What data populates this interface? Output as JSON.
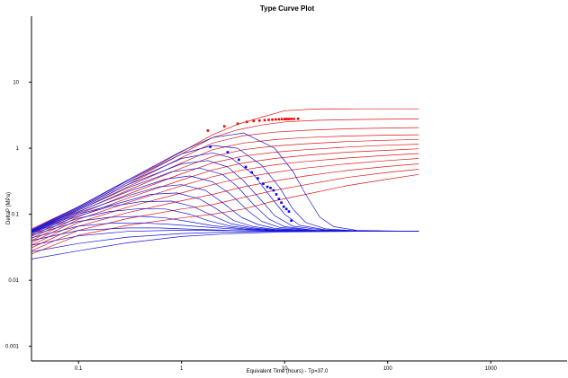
{
  "chart_data": {
    "type": "line",
    "title": "Type Curve Plot",
    "xlabel": "Equivalent Time (hours) - Tp=37.0",
    "ylabel": "DeltaP (MPa)",
    "x_scale": "log",
    "y_scale": "log",
    "xlim": [
      0.035,
      5500
    ],
    "ylim": [
      0.0006,
      100
    ],
    "x_ticks": [
      {
        "value": 0.1,
        "label": "0.1"
      },
      {
        "value": 1,
        "label": "1"
      },
      {
        "value": 10,
        "label": "10"
      },
      {
        "value": 100,
        "label": "100"
      },
      {
        "value": 1000,
        "label": "1000"
      }
    ],
    "y_ticks": [
      {
        "value": 0.001,
        "label": "0.001"
      },
      {
        "value": 0.01,
        "label": "0.01"
      },
      {
        "value": 0.1,
        "label": "0.1"
      },
      {
        "value": 1,
        "label": "1"
      },
      {
        "value": 10,
        "label": "10"
      }
    ],
    "grid": false,
    "legend": "none",
    "colors": {
      "red_family": "#e01515",
      "blue_family": "#1515d8"
    },
    "red_curves": [
      {
        "x": [
          0.035,
          0.1,
          0.3,
          1,
          2,
          3.5,
          6,
          10,
          20,
          50,
          200
        ],
        "y": [
          0.06,
          0.13,
          0.32,
          0.88,
          1.6,
          2.3,
          2.95,
          3.7,
          3.92,
          3.95,
          3.95
        ]
      },
      {
        "x": [
          0.035,
          0.1,
          0.3,
          1,
          2,
          3.5,
          6,
          10,
          20,
          50,
          200
        ],
        "y": [
          0.055,
          0.125,
          0.3,
          0.82,
          1.45,
          1.9,
          2.25,
          2.5,
          2.65,
          2.72,
          2.78
        ]
      },
      {
        "x": [
          0.035,
          0.1,
          0.3,
          1,
          2,
          4,
          8,
          16,
          40,
          100,
          200
        ],
        "y": [
          0.052,
          0.12,
          0.28,
          0.72,
          1.2,
          1.55,
          1.75,
          1.87,
          1.97,
          2.02,
          2.05
        ]
      },
      {
        "x": [
          0.035,
          0.1,
          0.3,
          1,
          2,
          4,
          8,
          16,
          40,
          100,
          200
        ],
        "y": [
          0.049,
          0.115,
          0.26,
          0.6,
          0.95,
          1.2,
          1.35,
          1.45,
          1.53,
          1.58,
          1.6
        ]
      },
      {
        "x": [
          0.035,
          0.1,
          0.3,
          1,
          2,
          4,
          8,
          16,
          40,
          100,
          200
        ],
        "y": [
          0.046,
          0.108,
          0.23,
          0.5,
          0.75,
          0.95,
          1.08,
          1.17,
          1.26,
          1.32,
          1.36
        ]
      },
      {
        "x": [
          0.035,
          0.1,
          0.3,
          1,
          2,
          4,
          8,
          16,
          40,
          100,
          200
        ],
        "y": [
          0.043,
          0.1,
          0.2,
          0.41,
          0.6,
          0.76,
          0.87,
          0.95,
          1.04,
          1.11,
          1.15
        ]
      },
      {
        "x": [
          0.035,
          0.1,
          0.3,
          1,
          2,
          4,
          8,
          16,
          40,
          100,
          200
        ],
        "y": [
          0.04,
          0.092,
          0.175,
          0.33,
          0.47,
          0.6,
          0.7,
          0.78,
          0.87,
          0.93,
          0.98
        ]
      },
      {
        "x": [
          0.035,
          0.1,
          0.3,
          1,
          2,
          4,
          8,
          16,
          40,
          100,
          200
        ],
        "y": [
          0.037,
          0.084,
          0.15,
          0.27,
          0.37,
          0.47,
          0.56,
          0.63,
          0.71,
          0.78,
          0.83
        ]
      },
      {
        "x": [
          0.035,
          0.1,
          0.3,
          1,
          2,
          4,
          8,
          16,
          40,
          100,
          200
        ],
        "y": [
          0.034,
          0.075,
          0.128,
          0.21,
          0.28,
          0.36,
          0.43,
          0.5,
          0.58,
          0.65,
          0.7
        ]
      },
      {
        "x": [
          0.035,
          0.1,
          0.3,
          1,
          2,
          4,
          8,
          16,
          40,
          100,
          200
        ],
        "y": [
          0.031,
          0.066,
          0.106,
          0.16,
          0.2,
          0.26,
          0.32,
          0.38,
          0.46,
          0.53,
          0.58
        ]
      },
      {
        "x": [
          0.035,
          0.1,
          0.3,
          1,
          2,
          4,
          8,
          16,
          40,
          100,
          200
        ],
        "y": [
          0.028,
          0.057,
          0.086,
          0.12,
          0.14,
          0.18,
          0.23,
          0.28,
          0.36,
          0.43,
          0.48
        ]
      },
      {
        "x": [
          0.035,
          0.1,
          0.3,
          1,
          2,
          4,
          8,
          16,
          40,
          100,
          200
        ],
        "y": [
          0.025,
          0.048,
          0.068,
          0.088,
          0.1,
          0.12,
          0.16,
          0.2,
          0.27,
          0.34,
          0.4
        ]
      }
    ],
    "blue_curves": [
      {
        "x": [
          0.035,
          0.1,
          0.3,
          1,
          2,
          4,
          8,
          12,
          16,
          22,
          30,
          50,
          200
        ],
        "y": [
          0.058,
          0.13,
          0.33,
          0.9,
          1.45,
          1.7,
          1.0,
          0.45,
          0.2,
          0.09,
          0.065,
          0.057,
          0.055
        ]
      },
      {
        "x": [
          0.035,
          0.1,
          0.3,
          1,
          2,
          3.5,
          6,
          9,
          12,
          16,
          25,
          50,
          200
        ],
        "y": [
          0.057,
          0.13,
          0.32,
          0.82,
          1.1,
          1.0,
          0.55,
          0.25,
          0.12,
          0.075,
          0.06,
          0.056,
          0.055
        ]
      },
      {
        "x": [
          0.035,
          0.1,
          0.3,
          1,
          2,
          3,
          5,
          7,
          10,
          14,
          25,
          50,
          200
        ],
        "y": [
          0.056,
          0.125,
          0.3,
          0.7,
          0.85,
          0.72,
          0.4,
          0.2,
          0.1,
          0.068,
          0.058,
          0.056,
          0.055
        ]
      },
      {
        "x": [
          0.035,
          0.1,
          0.3,
          1,
          1.8,
          2.8,
          4,
          6,
          8,
          12,
          25,
          50,
          200
        ],
        "y": [
          0.055,
          0.12,
          0.28,
          0.58,
          0.65,
          0.52,
          0.32,
          0.16,
          0.095,
          0.066,
          0.057,
          0.056,
          0.055
        ]
      },
      {
        "x": [
          0.035,
          0.1,
          0.3,
          0.8,
          1.5,
          2.5,
          3.5,
          5,
          7,
          10,
          20,
          50,
          200
        ],
        "y": [
          0.055,
          0.115,
          0.25,
          0.44,
          0.5,
          0.4,
          0.26,
          0.14,
          0.085,
          0.065,
          0.057,
          0.056,
          0.055
        ]
      },
      {
        "x": [
          0.035,
          0.1,
          0.3,
          0.7,
          1.2,
          2,
          3,
          4.5,
          6,
          9,
          20,
          50,
          200
        ],
        "y": [
          0.054,
          0.11,
          0.22,
          0.34,
          0.38,
          0.31,
          0.2,
          0.11,
          0.078,
          0.063,
          0.057,
          0.056,
          0.055
        ]
      },
      {
        "x": [
          0.035,
          0.1,
          0.3,
          0.6,
          1,
          1.7,
          2.5,
          3.8,
          5.5,
          8,
          20,
          50,
          200
        ],
        "y": [
          0.054,
          0.105,
          0.19,
          0.26,
          0.28,
          0.23,
          0.15,
          0.09,
          0.07,
          0.061,
          0.056,
          0.055,
          0.055
        ]
      },
      {
        "x": [
          0.035,
          0.1,
          0.3,
          0.5,
          0.9,
          1.5,
          2.2,
          3.2,
          5,
          8,
          20,
          50,
          200
        ],
        "y": [
          0.053,
          0.1,
          0.16,
          0.2,
          0.21,
          0.17,
          0.12,
          0.08,
          0.065,
          0.059,
          0.056,
          0.055,
          0.055
        ]
      },
      {
        "x": [
          0.035,
          0.1,
          0.2,
          0.4,
          0.8,
          1.3,
          2,
          3,
          5,
          8,
          20,
          50,
          200
        ],
        "y": [
          0.052,
          0.094,
          0.13,
          0.155,
          0.158,
          0.13,
          0.095,
          0.072,
          0.062,
          0.058,
          0.056,
          0.055,
          0.055
        ]
      },
      {
        "x": [
          0.035,
          0.1,
          0.2,
          0.4,
          0.7,
          1.2,
          1.8,
          3,
          5,
          8,
          20,
          50,
          200
        ],
        "y": [
          0.05,
          0.087,
          0.11,
          0.122,
          0.12,
          0.1,
          0.08,
          0.066,
          0.06,
          0.057,
          0.055,
          0.055,
          0.055
        ]
      },
      {
        "x": [
          0.035,
          0.1,
          0.2,
          0.4,
          0.7,
          1.2,
          2,
          4,
          8,
          20,
          50,
          200
        ],
        "y": [
          0.048,
          0.078,
          0.09,
          0.093,
          0.088,
          0.077,
          0.067,
          0.06,
          0.057,
          0.055,
          0.055,
          0.055
        ]
      },
      {
        "x": [
          0.035,
          0.1,
          0.2,
          0.4,
          0.8,
          1.5,
          3,
          6,
          12,
          30,
          100,
          200
        ],
        "y": [
          0.044,
          0.066,
          0.073,
          0.074,
          0.07,
          0.065,
          0.06,
          0.057,
          0.056,
          0.055,
          0.055,
          0.055
        ]
      },
      {
        "x": [
          0.035,
          0.1,
          0.3,
          0.6,
          1,
          2,
          4,
          8,
          20,
          50,
          200
        ],
        "y": [
          0.04,
          0.057,
          0.062,
          0.062,
          0.06,
          0.058,
          0.056,
          0.055,
          0.055,
          0.055,
          0.055
        ]
      },
      {
        "x": [
          0.035,
          0.1,
          0.3,
          0.8,
          2,
          5,
          15,
          50,
          200
        ],
        "y": [
          0.034,
          0.047,
          0.055,
          0.057,
          0.057,
          0.056,
          0.055,
          0.055,
          0.055
        ]
      },
      {
        "x": [
          0.035,
          0.1,
          0.3,
          1,
          3,
          10,
          50,
          200
        ],
        "y": [
          0.027,
          0.036,
          0.045,
          0.051,
          0.054,
          0.055,
          0.055,
          0.055
        ]
      },
      {
        "x": [
          0.035,
          0.1,
          0.3,
          1,
          3,
          10,
          50,
          200
        ],
        "y": [
          0.021,
          0.028,
          0.037,
          0.046,
          0.051,
          0.054,
          0.055,
          0.055
        ]
      }
    ],
    "red_points": {
      "x": [
        1.8,
        2.6,
        3.5,
        4.3,
        5.0,
        5.7,
        6.4,
        7.0,
        7.6,
        8.2,
        8.8,
        9.4,
        10.0,
        10.5,
        11.0,
        11.6,
        12.3,
        13.5
      ],
      "y": [
        1.85,
        2.15,
        2.35,
        2.5,
        2.58,
        2.62,
        2.66,
        2.69,
        2.71,
        2.73,
        2.74,
        2.75,
        2.76,
        2.77,
        2.77,
        2.78,
        2.78,
        2.79
      ]
    },
    "blue_points": {
      "x": [
        1.9,
        2.8,
        3.6,
        4.2,
        4.8,
        5.5,
        6.2,
        6.8,
        7.3,
        7.8,
        8.3,
        8.8,
        9.3,
        9.8,
        10.4,
        11.0,
        11.6
      ],
      "y": [
        1.05,
        0.87,
        0.67,
        0.52,
        0.43,
        0.35,
        0.29,
        0.26,
        0.25,
        0.23,
        0.2,
        0.17,
        0.15,
        0.13,
        0.12,
        0.11,
        0.08
      ]
    }
  }
}
